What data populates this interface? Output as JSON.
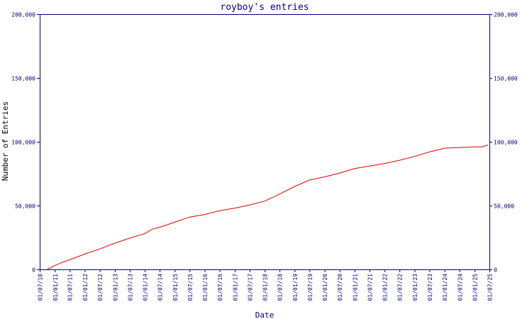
{
  "chart_data": {
    "type": "line",
    "title": "royboy's entries",
    "xlabel": "Date",
    "ylabel": "Number of Entries",
    "ylim": [
      0,
      200000
    ],
    "xlim": [
      "2010-07-01",
      "2025-07-01"
    ],
    "y_ticks": [
      {
        "value": 0,
        "label": "0"
      },
      {
        "value": 50000,
        "label": "50,000"
      },
      {
        "value": 100000,
        "label": "100,000"
      },
      {
        "value": 150000,
        "label": "150,000"
      },
      {
        "value": 200000,
        "label": "200,000"
      }
    ],
    "x_ticks": [
      {
        "value": "2010-07-01",
        "label": "01/07/10"
      },
      {
        "value": "2011-01-01",
        "label": "01/01/11"
      },
      {
        "value": "2011-07-01",
        "label": "01/07/11"
      },
      {
        "value": "2012-01-01",
        "label": "01/01/12"
      },
      {
        "value": "2012-07-01",
        "label": "01/07/12"
      },
      {
        "value": "2013-01-01",
        "label": "01/01/13"
      },
      {
        "value": "2013-07-01",
        "label": "01/07/13"
      },
      {
        "value": "2014-01-01",
        "label": "01/01/14"
      },
      {
        "value": "2014-07-01",
        "label": "01/07/14"
      },
      {
        "value": "2015-01-01",
        "label": "01/01/15"
      },
      {
        "value": "2015-07-01",
        "label": "01/07/15"
      },
      {
        "value": "2016-01-01",
        "label": "01/01/16"
      },
      {
        "value": "2016-07-01",
        "label": "01/07/16"
      },
      {
        "value": "2017-01-01",
        "label": "01/01/17"
      },
      {
        "value": "2017-07-01",
        "label": "01/07/17"
      },
      {
        "value": "2018-01-01",
        "label": "01/01/18"
      },
      {
        "value": "2018-07-01",
        "label": "01/07/18"
      },
      {
        "value": "2019-01-01",
        "label": "01/01/19"
      },
      {
        "value": "2019-07-01",
        "label": "01/07/19"
      },
      {
        "value": "2020-01-01",
        "label": "01/01/20"
      },
      {
        "value": "2020-07-01",
        "label": "01/07/20"
      },
      {
        "value": "2021-01-01",
        "label": "01/01/21"
      },
      {
        "value": "2021-07-01",
        "label": "01/07/21"
      },
      {
        "value": "2022-01-01",
        "label": "01/01/22"
      },
      {
        "value": "2022-07-01",
        "label": "01/07/22"
      },
      {
        "value": "2023-01-01",
        "label": "01/01/23"
      },
      {
        "value": "2023-07-01",
        "label": "01/07/23"
      },
      {
        "value": "2024-01-01",
        "label": "01/01/24"
      },
      {
        "value": "2024-07-01",
        "label": "01/07/24"
      },
      {
        "value": "2025-01-01",
        "label": "01/01/25"
      },
      {
        "value": "2025-07-01",
        "label": "01/07/25"
      }
    ],
    "grid": false,
    "legend": "none",
    "colors": {
      "axis": "#000080",
      "line": "#e00000",
      "text": "#000080",
      "axis_title": "#000000"
    },
    "series": [
      {
        "color": "#e00000",
        "points": [
          {
            "x": "2010-10-01",
            "y": 0
          },
          {
            "x": "2011-01-01",
            "y": 3000
          },
          {
            "x": "2011-04-01",
            "y": 5500
          },
          {
            "x": "2011-07-01",
            "y": 7500
          },
          {
            "x": "2012-01-01",
            "y": 12000
          },
          {
            "x": "2012-07-01",
            "y": 16000
          },
          {
            "x": "2013-01-01",
            "y": 20500
          },
          {
            "x": "2013-07-01",
            "y": 24500
          },
          {
            "x": "2014-01-01",
            "y": 28000
          },
          {
            "x": "2014-04-01",
            "y": 31500
          },
          {
            "x": "2014-07-01",
            "y": 33000
          },
          {
            "x": "2015-01-01",
            "y": 37000
          },
          {
            "x": "2015-07-01",
            "y": 41000
          },
          {
            "x": "2016-01-01",
            "y": 43000
          },
          {
            "x": "2016-07-01",
            "y": 46000
          },
          {
            "x": "2017-01-01",
            "y": 48000
          },
          {
            "x": "2017-07-01",
            "y": 50500
          },
          {
            "x": "2018-01-01",
            "y": 53500
          },
          {
            "x": "2018-07-01",
            "y": 59000
          },
          {
            "x": "2019-01-01",
            "y": 65000
          },
          {
            "x": "2019-07-01",
            "y": 70000
          },
          {
            "x": "2020-01-01",
            "y": 72500
          },
          {
            "x": "2020-07-01",
            "y": 75500
          },
          {
            "x": "2021-01-01",
            "y": 79000
          },
          {
            "x": "2021-07-01",
            "y": 81000
          },
          {
            "x": "2022-01-01",
            "y": 83000
          },
          {
            "x": "2022-07-01",
            "y": 85500
          },
          {
            "x": "2023-01-01",
            "y": 88500
          },
          {
            "x": "2023-07-01",
            "y": 92000
          },
          {
            "x": "2024-01-01",
            "y": 95000
          },
          {
            "x": "2024-07-01",
            "y": 95500
          },
          {
            "x": "2025-01-01",
            "y": 96000
          },
          {
            "x": "2025-04-01",
            "y": 96000
          },
          {
            "x": "2025-06-15",
            "y": 97500
          }
        ]
      }
    ]
  }
}
